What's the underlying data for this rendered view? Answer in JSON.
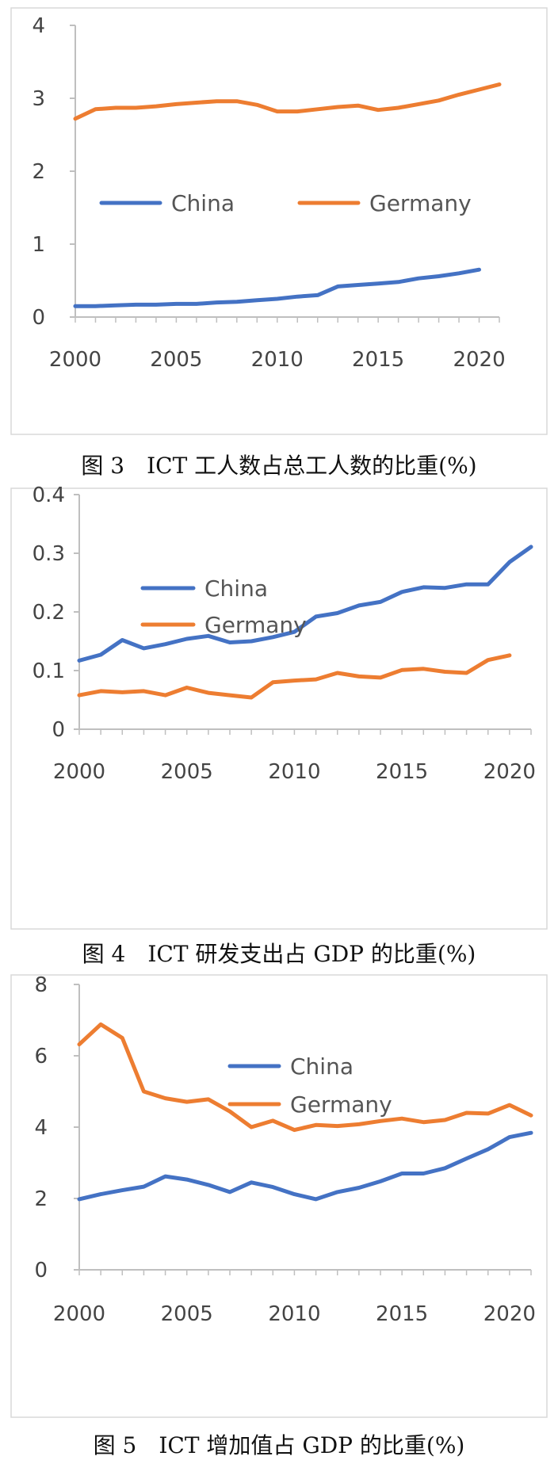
{
  "chart_data": [
    {
      "type": "line",
      "title": "",
      "xlabel": "",
      "ylabel": "",
      "xlim": [
        2000,
        2021
      ],
      "ylim": [
        0,
        4
      ],
      "x_ticks": [
        2000,
        2005,
        2010,
        2015,
        2020
      ],
      "y_ticks": [
        0,
        1,
        2,
        3,
        4
      ],
      "y_tick_labels": [
        "0",
        "1",
        "2",
        "3",
        "4"
      ],
      "grid": false,
      "legend": "center",
      "series": [
        {
          "name": "China",
          "color": "#4472C4",
          "x": [
            2000,
            2001,
            2002,
            2003,
            2004,
            2005,
            2006,
            2007,
            2008,
            2009,
            2010,
            2011,
            2012,
            2013,
            2014,
            2015,
            2016,
            2017,
            2018,
            2019,
            2020
          ],
          "values": [
            0.15,
            0.15,
            0.16,
            0.17,
            0.17,
            0.18,
            0.18,
            0.2,
            0.21,
            0.23,
            0.25,
            0.28,
            0.3,
            0.42,
            0.44,
            0.46,
            0.48,
            0.53,
            0.56,
            0.6,
            0.65
          ]
        },
        {
          "name": "Germany",
          "color": "#ED7D31",
          "x": [
            2000,
            2001,
            2002,
            2003,
            2004,
            2005,
            2006,
            2007,
            2008,
            2009,
            2010,
            2011,
            2012,
            2013,
            2014,
            2015,
            2016,
            2017,
            2018,
            2019,
            2020,
            2021
          ],
          "values": [
            2.72,
            2.85,
            2.87,
            2.87,
            2.89,
            2.92,
            2.94,
            2.96,
            2.96,
            2.91,
            2.82,
            2.82,
            2.85,
            2.88,
            2.9,
            2.84,
            2.87,
            2.92,
            2.97,
            3.05,
            3.12,
            3.19
          ]
        }
      ],
      "caption": "图 3　ICT 工人数占总工人数的比重(%)"
    },
    {
      "type": "line",
      "title": "",
      "xlabel": "",
      "ylabel": "",
      "xlim": [
        2000,
        2021
      ],
      "ylim": [
        0,
        0.4
      ],
      "x_ticks": [
        2000,
        2005,
        2010,
        2015,
        2020
      ],
      "y_ticks": [
        0,
        0.1,
        0.2,
        0.3,
        0.4
      ],
      "y_tick_labels": [
        "0",
        "0.1",
        "0.2",
        "0.3",
        "0.4"
      ],
      "grid": false,
      "legend": "top-left",
      "series": [
        {
          "name": "China",
          "color": "#4472C4",
          "x": [
            2000,
            2001,
            2002,
            2003,
            2004,
            2005,
            2006,
            2007,
            2008,
            2009,
            2010,
            2011,
            2012,
            2013,
            2014,
            2015,
            2016,
            2017,
            2018,
            2019,
            2020,
            2021
          ],
          "values": [
            0.117,
            0.127,
            0.152,
            0.138,
            0.145,
            0.154,
            0.159,
            0.148,
            0.15,
            0.157,
            0.166,
            0.192,
            0.198,
            0.211,
            0.217,
            0.234,
            0.242,
            0.241,
            0.247,
            0.247,
            0.285,
            0.311
          ]
        },
        {
          "name": "Germany",
          "color": "#ED7D31",
          "x": [
            2000,
            2001,
            2002,
            2003,
            2004,
            2005,
            2006,
            2007,
            2008,
            2009,
            2010,
            2011,
            2012,
            2013,
            2014,
            2015,
            2016,
            2017,
            2018,
            2019,
            2020
          ],
          "values": [
            0.058,
            0.065,
            0.063,
            0.065,
            0.058,
            0.071,
            0.062,
            0.058,
            0.054,
            0.08,
            0.083,
            0.085,
            0.096,
            0.09,
            0.088,
            0.101,
            0.103,
            0.098,
            0.096,
            0.118,
            0.126
          ]
        }
      ],
      "caption": "图 4　ICT 研发支出占 GDP 的比重(%)"
    },
    {
      "type": "line",
      "title": "",
      "xlabel": "",
      "ylabel": "",
      "xlim": [
        2000,
        2021
      ],
      "ylim": [
        0,
        8
      ],
      "x_ticks": [
        2000,
        2005,
        2010,
        2015,
        2020
      ],
      "y_ticks": [
        0,
        2,
        4,
        6,
        8
      ],
      "y_tick_labels": [
        "0",
        "2",
        "4",
        "6",
        "8"
      ],
      "grid": false,
      "legend": "top-center",
      "series": [
        {
          "name": "China",
          "color": "#4472C4",
          "x": [
            2000,
            2001,
            2002,
            2003,
            2004,
            2005,
            2006,
            2007,
            2008,
            2009,
            2010,
            2011,
            2012,
            2013,
            2014,
            2015,
            2016,
            2017,
            2018,
            2019,
            2020,
            2021
          ],
          "values": [
            1.98,
            2.12,
            2.23,
            2.33,
            2.62,
            2.53,
            2.38,
            2.18,
            2.45,
            2.32,
            2.12,
            1.98,
            2.18,
            2.3,
            2.48,
            2.7,
            2.7,
            2.85,
            3.12,
            3.38,
            3.72,
            3.84
          ]
        },
        {
          "name": "Germany",
          "color": "#ED7D31",
          "x": [
            2000,
            2001,
            2002,
            2003,
            2004,
            2005,
            2006,
            2007,
            2008,
            2009,
            2010,
            2011,
            2012,
            2013,
            2014,
            2015,
            2016,
            2017,
            2018,
            2019,
            2020,
            2021
          ],
          "values": [
            6.32,
            6.88,
            6.5,
            5.0,
            4.81,
            4.71,
            4.78,
            4.44,
            4.0,
            4.18,
            3.92,
            4.06,
            4.03,
            4.08,
            4.17,
            4.24,
            4.14,
            4.2,
            4.4,
            4.38,
            4.62,
            4.33
          ]
        }
      ],
      "caption": "图 5　ICT 增加值占 GDP 的比重(%)"
    }
  ]
}
